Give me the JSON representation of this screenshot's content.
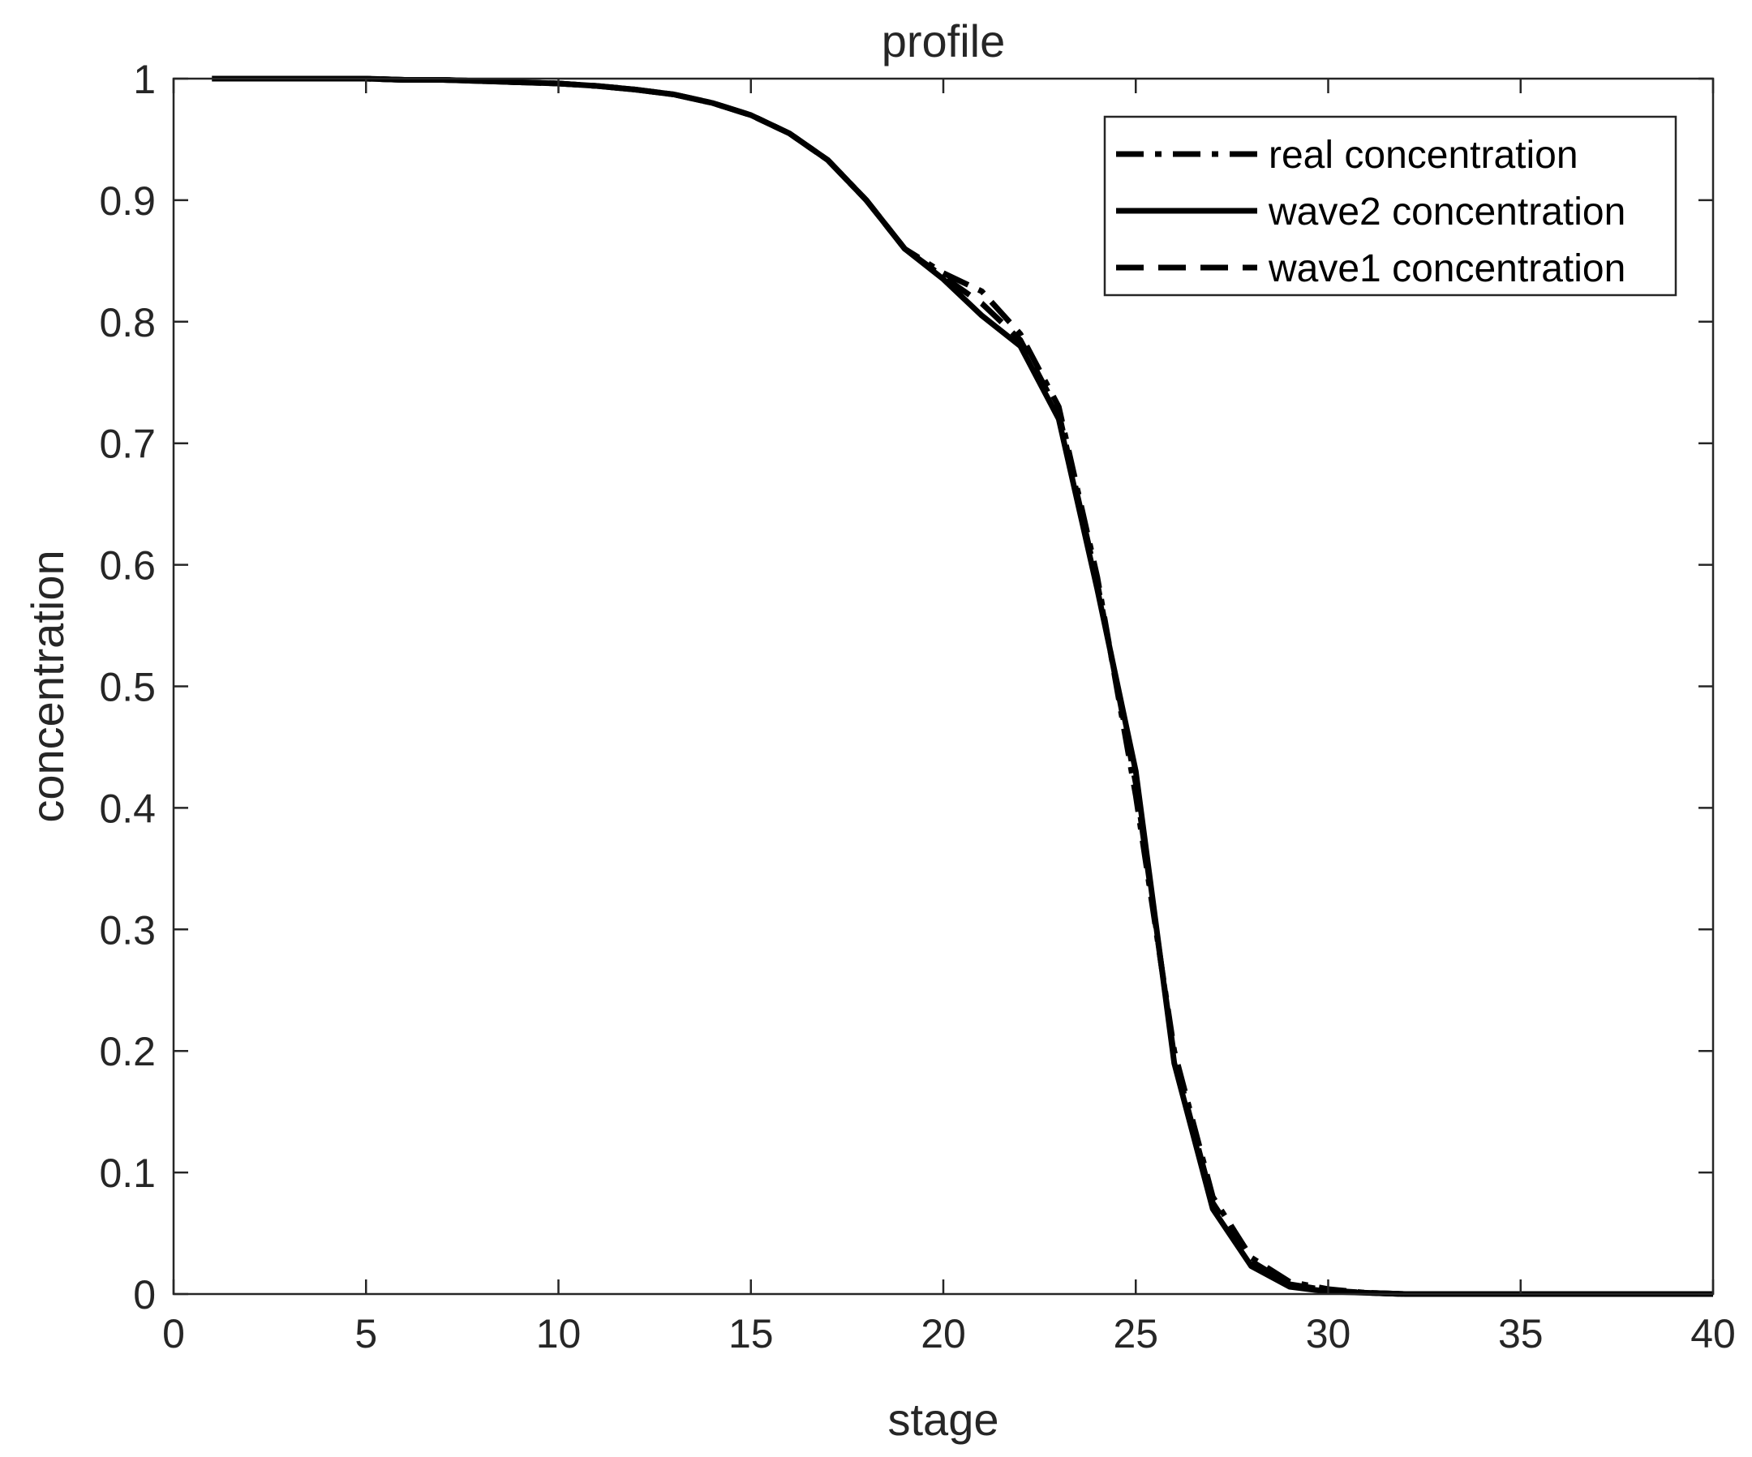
{
  "chart_data": {
    "type": "line",
    "title": "profile",
    "xlabel": "stage",
    "ylabel": "concentration",
    "xlim": [
      0,
      40
    ],
    "ylim": [
      0,
      1
    ],
    "xticks": [
      "0",
      "5",
      "10",
      "15",
      "20",
      "25",
      "30",
      "35",
      "40"
    ],
    "yticks": [
      "0",
      "0.1",
      "0.2",
      "0.3",
      "0.4",
      "0.5",
      "0.6",
      "0.7",
      "0.8",
      "0.9",
      "1"
    ],
    "grid": false,
    "legend_position": "top-right",
    "line_color": "#000000",
    "x": [
      1,
      2,
      3,
      4,
      5,
      6,
      7,
      8,
      9,
      10,
      11,
      12,
      13,
      14,
      15,
      16,
      17,
      18,
      19,
      20,
      21,
      22,
      23,
      24,
      25,
      26,
      27,
      28,
      29,
      30,
      31,
      32,
      33,
      34,
      35,
      36,
      37,
      38,
      39,
      40
    ],
    "series": [
      {
        "name": "real concentration",
        "style": "dash-dot",
        "values": [
          1.0,
          1.0,
          1.0,
          1.0,
          1.0,
          0.999,
          0.999,
          0.998,
          0.997,
          0.996,
          0.994,
          0.991,
          0.987,
          0.98,
          0.97,
          0.955,
          0.933,
          0.9,
          0.86,
          0.84,
          0.825,
          0.79,
          0.73,
          0.59,
          0.41,
          0.2,
          0.08,
          0.03,
          0.01,
          0.004,
          0.001,
          0.0,
          0.0,
          0.0,
          0.0,
          0.0,
          0.0,
          0.0,
          0.0,
          0.0
        ]
      },
      {
        "name": "wave2 concentration",
        "style": "solid",
        "values": [
          1.0,
          1.0,
          1.0,
          1.0,
          1.0,
          0.999,
          0.999,
          0.998,
          0.997,
          0.996,
          0.994,
          0.991,
          0.987,
          0.98,
          0.97,
          0.955,
          0.933,
          0.9,
          0.86,
          0.835,
          0.805,
          0.78,
          0.72,
          0.58,
          0.43,
          0.19,
          0.07,
          0.023,
          0.006,
          0.002,
          0.001,
          0.0,
          0.0,
          0.0,
          0.0,
          0.0,
          0.0,
          0.0,
          0.0,
          0.0
        ]
      },
      {
        "name": "wave1 concentration",
        "style": "dashed",
        "values": [
          1.0,
          1.0,
          1.0,
          1.0,
          1.0,
          0.999,
          0.999,
          0.998,
          0.997,
          0.996,
          0.994,
          0.991,
          0.987,
          0.98,
          0.97,
          0.955,
          0.933,
          0.9,
          0.86,
          0.837,
          0.815,
          0.785,
          0.725,
          0.585,
          0.42,
          0.195,
          0.075,
          0.027,
          0.008,
          0.003,
          0.001,
          0.0,
          0.0,
          0.0,
          0.0,
          0.0,
          0.0,
          0.0,
          0.0,
          0.0
        ]
      }
    ]
  }
}
